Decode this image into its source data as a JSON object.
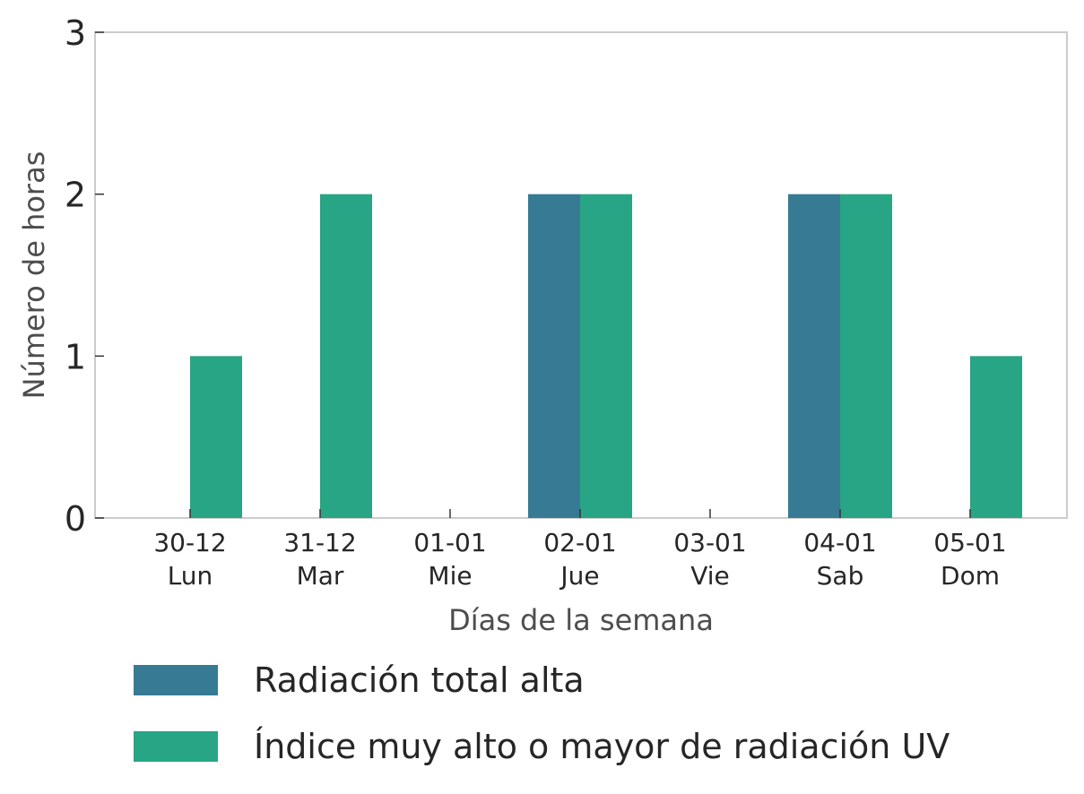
{
  "chart_data": {
    "type": "bar",
    "categories": [
      "30-12\nLun",
      "31-12\nMar",
      "01-01\nMie",
      "02-01\nJue",
      "03-01\nVie",
      "04-01\nSab",
      "05-01\nDom"
    ],
    "category_dates": [
      "30-12",
      "31-12",
      "01-01",
      "02-01",
      "03-01",
      "04-01",
      "05-01"
    ],
    "category_days": [
      "Lun",
      "Mar",
      "Mie",
      "Jue",
      "Vie",
      "Sab",
      "Dom"
    ],
    "series": [
      {
        "name": "Radiación total alta",
        "color": "#367b93",
        "values": [
          0,
          0,
          0,
          2,
          0,
          2,
          0
        ]
      },
      {
        "name": "Índice muy alto o mayor de radiación UV",
        "color": "#27a584",
        "values": [
          1,
          2,
          0,
          2,
          0,
          2,
          1
        ]
      }
    ],
    "xlabel": "Días de la semana",
    "ylabel": "Número de horas",
    "ylim": [
      0,
      3
    ],
    "yticks": [
      0,
      1,
      2,
      3
    ],
    "grid": false,
    "legend_position": "bottom"
  }
}
